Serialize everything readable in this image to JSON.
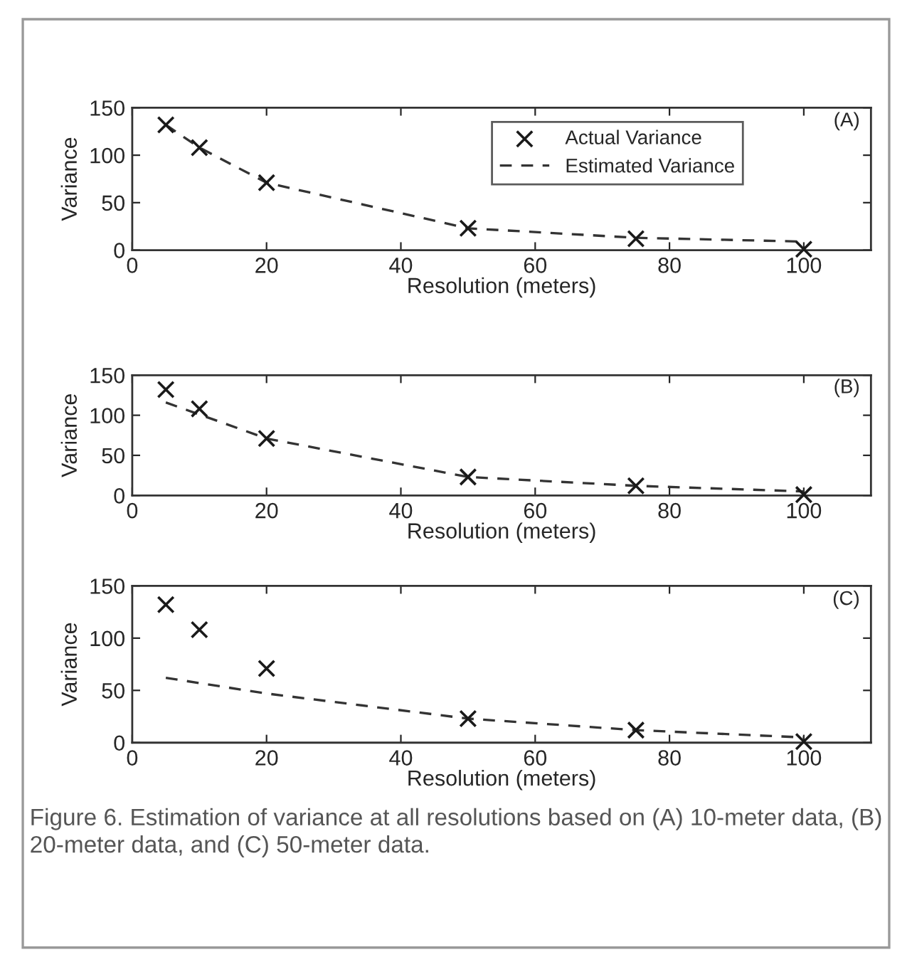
{
  "chart_data": [
    {
      "type": "line",
      "xlabel": "Resolution (meters)",
      "ylabel": "Variance",
      "annotations": [
        "(A)"
      ],
      "xlim": [
        0,
        110
      ],
      "ylim": [
        0,
        150
      ],
      "xticks": [
        0,
        20,
        40,
        60,
        80,
        100
      ],
      "yticks": [
        0,
        50,
        100,
        150
      ],
      "legend": "top right",
      "grid": false,
      "series": [
        {
          "name": "Actual Variance",
          "type": "scatter",
          "marker": "cross",
          "color": "#1a1a1a",
          "x": [
            5,
            10,
            20,
            50,
            75,
            100
          ],
          "values": [
            132,
            108,
            71,
            23,
            12,
            1
          ]
        },
        {
          "name": "Estimated Variance",
          "type": "line",
          "line_style": "dashed",
          "color": "#333333",
          "x": [
            5,
            10,
            20,
            50,
            75,
            100
          ],
          "values": [
            132,
            108,
            71,
            23,
            13,
            9
          ]
        }
      ]
    },
    {
      "type": "line",
      "xlabel": "Resolution (meters)",
      "ylabel": "Variance",
      "annotations": [
        "(B)"
      ],
      "xlim": [
        0,
        110
      ],
      "ylim": [
        0,
        150
      ],
      "xticks": [
        0,
        20,
        40,
        60,
        80,
        100
      ],
      "yticks": [
        0,
        50,
        100,
        150
      ],
      "grid": false,
      "series": [
        {
          "type": "scatter",
          "marker": "cross",
          "color": "#1a1a1a",
          "x": [
            5,
            10,
            20,
            50,
            75,
            100
          ],
          "values": [
            132,
            108,
            71,
            23,
            12,
            1
          ]
        },
        {
          "type": "line",
          "line_style": "dashed",
          "color": "#333333",
          "x": [
            5,
            10,
            20,
            50,
            75,
            100
          ],
          "values": [
            116,
            101,
            71,
            23,
            12,
            5
          ]
        }
      ]
    },
    {
      "type": "line",
      "xlabel": "Resolution (meters)",
      "ylabel": "Variance",
      "annotations": [
        "(C)",
        "Figure 6. Estimation of variance at all resolutions based on (A) 10-meter data, (B) 20-meter data, and (C) 50-meter data."
      ],
      "xlim": [
        0,
        110
      ],
      "ylim": [
        0,
        150
      ],
      "xticks": [
        0,
        20,
        40,
        60,
        80,
        100
      ],
      "yticks": [
        0,
        50,
        100,
        150
      ],
      "grid": false,
      "series": [
        {
          "type": "scatter",
          "marker": "cross",
          "color": "#1a1a1a",
          "x": [
            5,
            10,
            20,
            50,
            75,
            100
          ],
          "values": [
            132,
            108,
            71,
            23,
            12,
            1
          ]
        },
        {
          "type": "line",
          "line_style": "dashed",
          "color": "#333333",
          "x": [
            5,
            10,
            20,
            50,
            75,
            100
          ],
          "values": [
            62,
            57,
            47,
            23,
            12,
            5
          ]
        }
      ]
    }
  ]
}
